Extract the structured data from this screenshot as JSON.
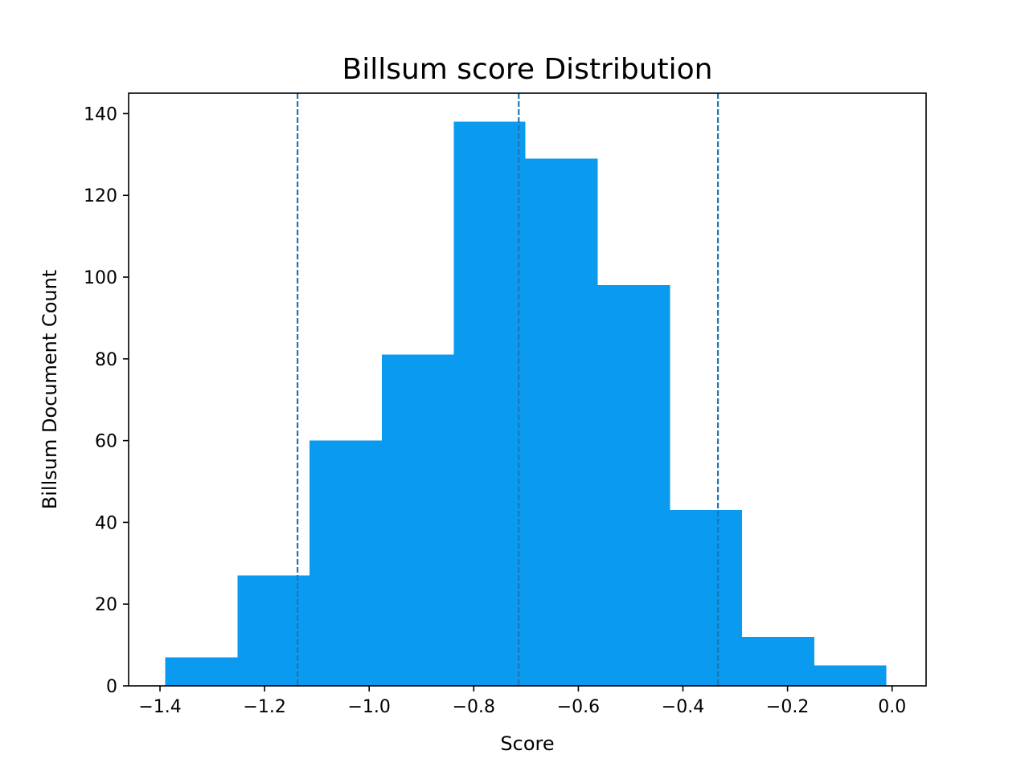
{
  "chart_data": {
    "type": "bar",
    "title": "Billsum score Distribution",
    "xlabel": "Score",
    "ylabel": "Billsum Document Count",
    "xlim": [
      -1.46,
      0.065
    ],
    "ylim": [
      0,
      145
    ],
    "xticks": [
      -1.4,
      -1.2,
      -1.0,
      -0.8,
      -0.6,
      -0.4,
      -0.2,
      0.0
    ],
    "xtick_labels": [
      "−1.4",
      "−1.2",
      "−1.0",
      "−0.8",
      "−0.6",
      "−0.4",
      "−0.2",
      "0.0"
    ],
    "yticks": [
      0,
      20,
      40,
      60,
      80,
      100,
      120,
      140
    ],
    "ytick_labels": [
      "0",
      "20",
      "40",
      "60",
      "80",
      "100",
      "120",
      "140"
    ],
    "bin_edges": [
      -1.39,
      -1.252,
      -1.114,
      -0.976,
      -0.838,
      -0.701,
      -0.563,
      -0.425,
      -0.287,
      -0.149,
      -0.011
    ],
    "counts": [
      7,
      27,
      60,
      81,
      138,
      129,
      98,
      43,
      12,
      5
    ],
    "bar_color": "#0a9af0",
    "reference_lines": [
      -1.137,
      -0.714,
      -0.333
    ],
    "reference_line_color": "#1f77b4",
    "reference_line_style": "dashed",
    "grid": false,
    "legend": "none"
  }
}
